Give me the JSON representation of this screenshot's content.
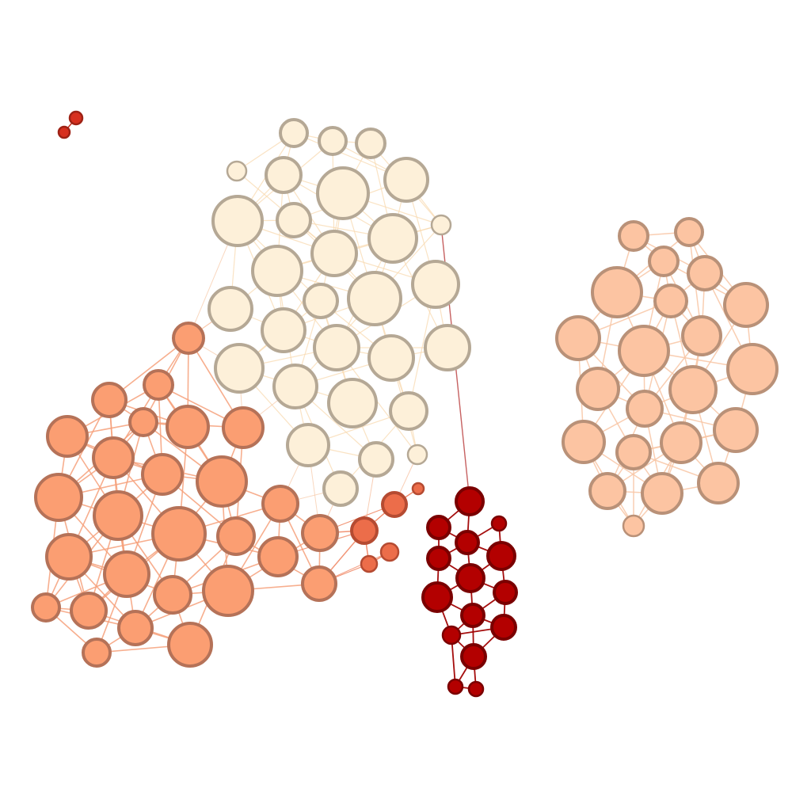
{
  "graph": {
    "type": "network",
    "clusters": [
      {
        "id": "cream",
        "fill": "#fdf0d9",
        "stroke": "#b5a895",
        "edge": "#f8d9b0"
      },
      {
        "id": "orange",
        "fill": "#fb9e72",
        "stroke": "#b57258",
        "edge": "#f6a07a"
      },
      {
        "id": "peach",
        "fill": "#fcc4a2",
        "stroke": "#b99178",
        "edge": "#f8c5a5"
      },
      {
        "id": "red",
        "fill": "#b30000",
        "stroke": "#7a0000",
        "edge": "#a00000"
      },
      {
        "id": "tomato",
        "fill": "#ec6d4a",
        "stroke": "#b54b32",
        "edge": "#ee7a57"
      },
      {
        "id": "pair",
        "fill": "#d7301f",
        "stroke": "#9e2215",
        "edge": "#c43020"
      }
    ]
  }
}
